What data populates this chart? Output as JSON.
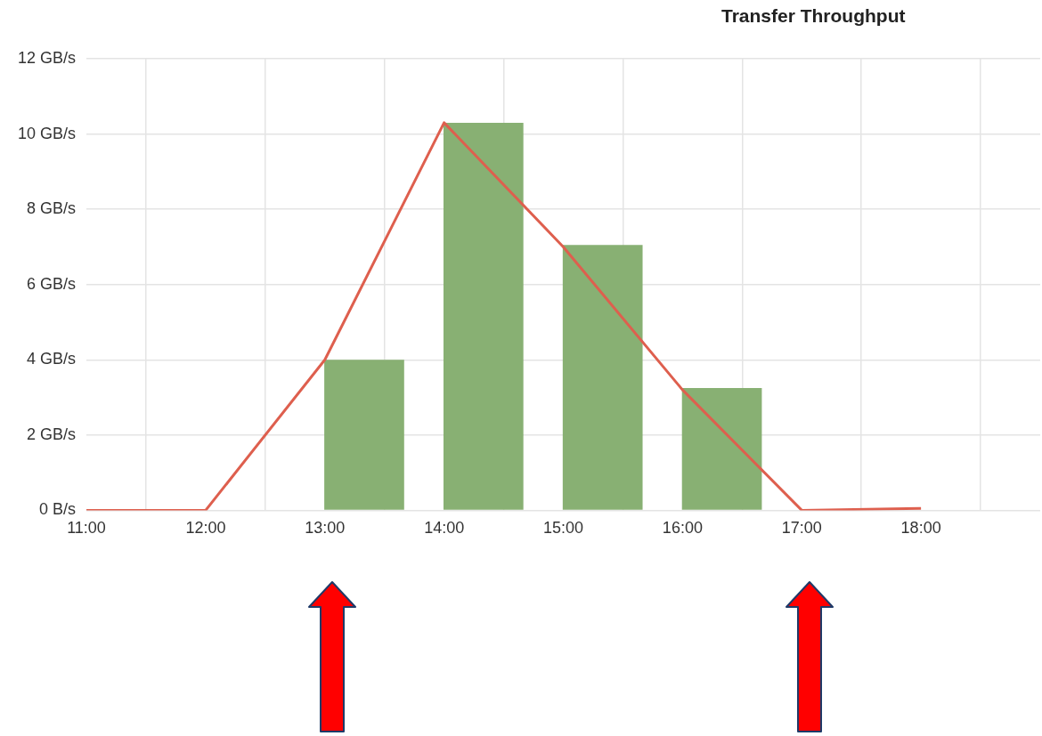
{
  "chart_data": {
    "type": "bar",
    "title": "Transfer Throughput",
    "series": [
      {
        "color": "#88b073",
        "x": [
          13.33,
          14.33,
          15.33,
          16.33
        ],
        "values": [
          4.0,
          10.3,
          7.05,
          3.25
        ]
      },
      {
        "type": "line",
        "color": "#de5f4e",
        "x": [
          11,
          12,
          13,
          14,
          15,
          16,
          17,
          18
        ],
        "values": [
          0,
          0,
          4.0,
          10.3,
          7.0,
          3.2,
          0,
          0.05
        ]
      }
    ],
    "xlim": [
      11,
      19
    ],
    "xticks": [
      {
        "value": 11,
        "label": "11:00"
      },
      {
        "value": 12,
        "label": "12:00"
      },
      {
        "value": 13,
        "label": "13:00"
      },
      {
        "value": 14,
        "label": "14:00"
      },
      {
        "value": 15,
        "label": "15:00"
      },
      {
        "value": 16,
        "label": "16:00"
      },
      {
        "value": 17,
        "label": "17:00"
      },
      {
        "value": 18,
        "label": "18:00"
      }
    ],
    "ylim": [
      0,
      12
    ],
    "yticks": [
      {
        "value": 0,
        "label": "0 B/s"
      },
      {
        "value": 2,
        "label": "2 GB/s"
      },
      {
        "value": 4,
        "label": "4 GB/s"
      },
      {
        "value": 6,
        "label": "6 GB/s"
      },
      {
        "value": 8,
        "label": "8 GB/s"
      },
      {
        "value": 10,
        "label": "10 GB/s"
      },
      {
        "value": 12,
        "label": "12 GB/s"
      }
    ],
    "grid": true,
    "legend": false,
    "marker": "none",
    "line_style": "solid"
  }
}
